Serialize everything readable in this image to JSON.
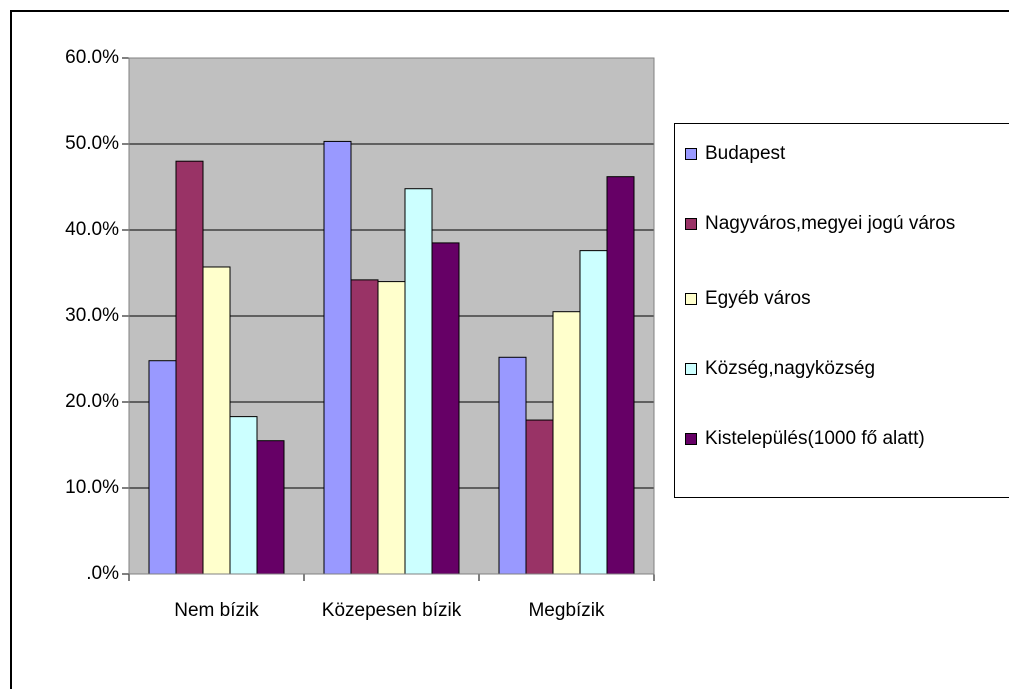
{
  "chart_data": {
    "type": "bar",
    "categories": [
      "Nem bízik",
      "Közepesen bízik",
      "Megbízik"
    ],
    "series": [
      {
        "name": "Budapest",
        "color": "#9999ff",
        "values": [
          24.8,
          50.3,
          25.2
        ]
      },
      {
        "name": "Nagyváros,megyei jogú város",
        "color": "#993366",
        "values": [
          48.0,
          34.2,
          17.9
        ]
      },
      {
        "name": "Egyéb város",
        "color": "#ffffcc",
        "values": [
          35.7,
          34.0,
          30.5
        ]
      },
      {
        "name": "Község,nagyközség",
        "color": "#ccffff",
        "values": [
          18.3,
          44.8,
          37.6
        ]
      },
      {
        "name": "Kistelepülés(1000 fő alatt)",
        "color": "#660066",
        "values": [
          15.5,
          38.5,
          46.2
        ]
      }
    ],
    "ylim": [
      0,
      60
    ],
    "yticks": [
      {
        "value": 0,
        "label": ".0%"
      },
      {
        "value": 10,
        "label": "10.0%"
      },
      {
        "value": 20,
        "label": "20.0%"
      },
      {
        "value": 30,
        "label": "30.0%"
      },
      {
        "value": 40,
        "label": "40.0%"
      },
      {
        "value": 50,
        "label": "50.0%"
      },
      {
        "value": 60,
        "label": "60.0%"
      }
    ],
    "grid": true,
    "plot_background": "#c0c0c0",
    "legend": "right"
  }
}
